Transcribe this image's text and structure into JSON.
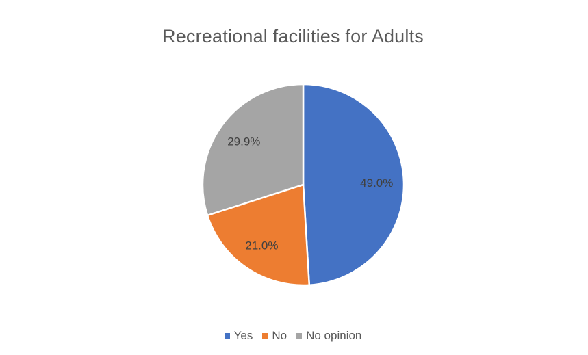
{
  "chart_data": {
    "type": "pie",
    "title": "Recreational facilities for Adults",
    "categories": [
      "Yes",
      "No",
      "No opinion"
    ],
    "values": [
      49.0,
      21.0,
      29.9
    ],
    "labels": [
      "49.0%",
      "21.0%",
      "29.9%"
    ],
    "colors": [
      "#4472C4",
      "#ED7D31",
      "#A5A5A5"
    ],
    "legend_position": "bottom",
    "start_angle": "12 o'clock",
    "direction": "clockwise"
  }
}
